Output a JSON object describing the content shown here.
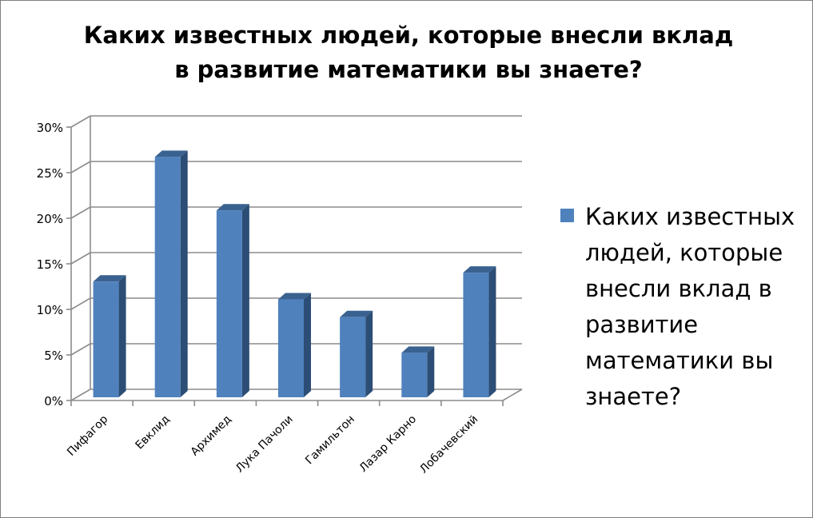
{
  "chart_data": {
    "type": "bar",
    "title": "Каких известных людей, которые внесли вклад\nв развитие математики вы знаете?",
    "categories": [
      "Пифагор",
      "Евклид",
      "Архимед",
      "Лука Пачоли",
      "Гамильтон",
      "Лазар Карно",
      "Лобачевский"
    ],
    "series": [
      {
        "name": "Каких известных людей, которые внесли вклад в развитие математики вы знаете?",
        "values": [
          13,
          27,
          21,
          11,
          9,
          5,
          14
        ]
      }
    ],
    "ylim": [
      0,
      30
    ],
    "yticks": [
      "0%",
      "5%",
      "10%",
      "15%",
      "20%",
      "25%",
      "30%"
    ],
    "xlabel": "",
    "ylabel": "",
    "grid": true,
    "legend_position": "right",
    "colors": {
      "bar_front": "#4f81bd",
      "bar_side": "#2c4d75",
      "bar_top": "#3a6290",
      "grid": "#8c8c8c"
    }
  }
}
